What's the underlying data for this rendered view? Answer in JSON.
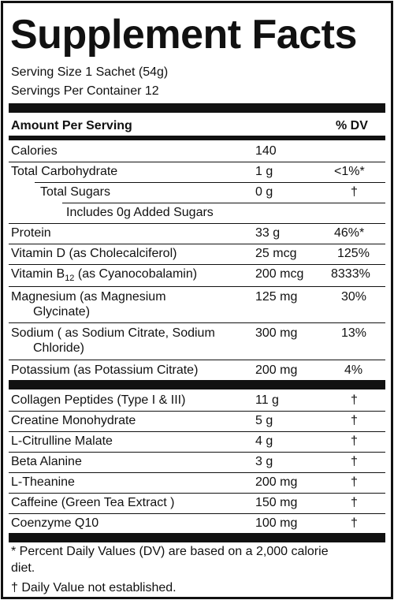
{
  "title": "Supplement Facts",
  "serving_size": "Serving Size 1 Sachet (54g)",
  "servings_per_container": "Servings Per Container 12",
  "header": {
    "amount": "Amount Per Serving",
    "dv": "% DV"
  },
  "section1": [
    {
      "name": "Calories",
      "amount": "140",
      "dv": ""
    },
    {
      "name": "Total Carbohydrate",
      "amount": "1 g",
      "dv": "<1%*"
    },
    {
      "name": "Total Sugars",
      "amount": "0 g",
      "dv": "†"
    },
    {
      "name": "Includes 0g Added Sugars",
      "amount": "",
      "dv": ""
    },
    {
      "name": "Protein",
      "amount": "33 g",
      "dv": "46%*"
    },
    {
      "name": "Vitamin D (as Cholecalciferol)",
      "amount": "25 mcg",
      "dv": "125%"
    },
    {
      "name_pre": "Vitamin B",
      "name_sub": "12",
      "name_post": " (as Cyanocobalamin)",
      "amount": "200 mcg",
      "dv": "8333%"
    },
    {
      "name": "Magnesium (as Magnesium",
      "name2": "Glycinate)",
      "amount": "125 mg",
      "dv": "30%"
    },
    {
      "name": "Sodium ( as Sodium Citrate, Sodium",
      "name2": "Chloride)",
      "amount": "300 mg",
      "dv": "13%"
    },
    {
      "name": "Potassium (as Potassium Citrate)",
      "amount": "200 mg",
      "dv": "4%"
    }
  ],
  "section2": [
    {
      "name": "Collagen Peptides (Type I & III)",
      "amount": "11 g",
      "dv": "†"
    },
    {
      "name": "Creatine Monohydrate",
      "amount": "5 g",
      "dv": "†"
    },
    {
      "name": "L-Citrulline Malate",
      "amount": "4 g",
      "dv": "†"
    },
    {
      "name": "Beta Alanine",
      "amount": "3 g",
      "dv": "†"
    },
    {
      "name": "L-Theanine",
      "amount": "200 mg",
      "dv": "†"
    },
    {
      "name": "Caffeine (Green Tea Extract )",
      "amount": "150 mg",
      "dv": "†"
    },
    {
      "name": "Coenzyme Q10",
      "amount": "100 mg",
      "dv": "†"
    }
  ],
  "footnote1_line1": "* Percent Daily Values (DV) are based on a 2,000 calorie",
  "footnote1_line2": "diet.",
  "footnote2": "† Daily Value not established."
}
